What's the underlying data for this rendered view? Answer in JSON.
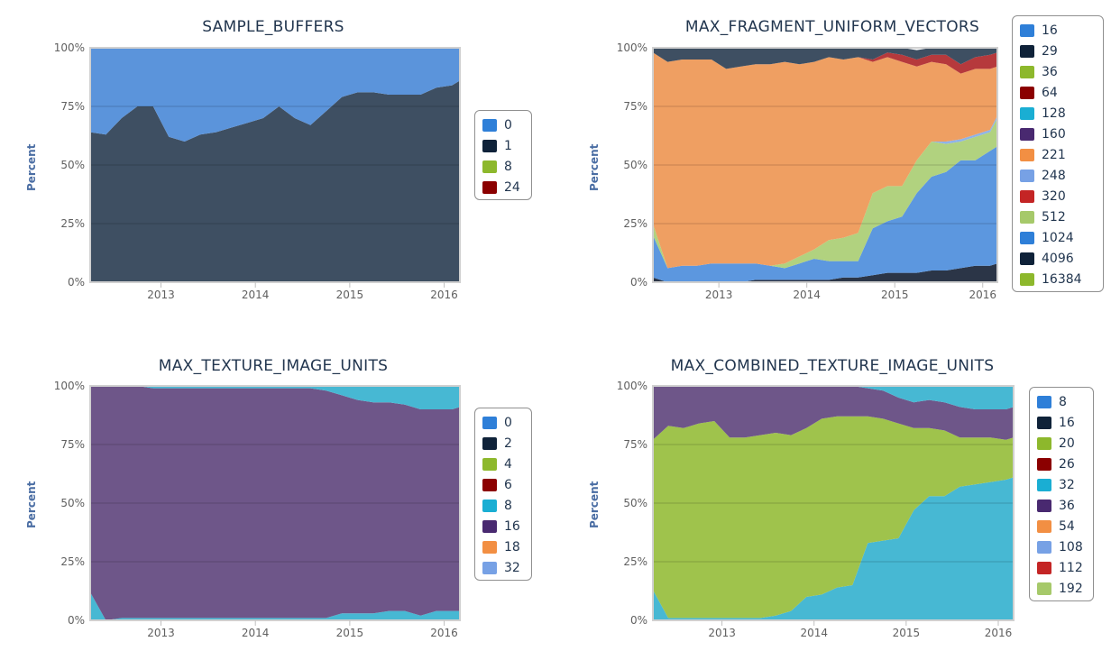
{
  "colors": {
    "0": "#2e7fd8",
    "1": "#0f2239",
    "2": "#0f2239",
    "4": "#8db82c",
    "6": "#8b0000",
    "8": "#2e7fd8",
    "16": "#2e7fd8",
    "18": "#f28f43",
    "20": "#8db82c",
    "24": "#8b0000",
    "26": "#8b0000",
    "29": "#0f2239",
    "32": "#1aaed3",
    "36": "#8db82c",
    "54": "#f28f43",
    "64": "#8b0000",
    "108": "#77a1e5",
    "112": "#c42525",
    "128": "#1aaed3",
    "160": "#492970",
    "192": "#a6c96a",
    "221": "#f28f43",
    "248": "#77a1e5",
    "320": "#c42525",
    "512": "#a6c96a",
    "1024": "#2e7fd8",
    "4096": "#0f2239",
    "16384": "#8db82c",
    "c8_tex": "#2e7fd8",
    "c16_tex": "#0f2239",
    "c32_img": "#1aaed3",
    "c16_img": "#492970",
    "c32_img_light": "#77a1e5",
    "c36_tex": "#492970"
  },
  "charts": [
    {
      "title": "SAMPLE_BUFFERS",
      "ylabel": "Percent",
      "yticks": [
        "0%",
        "25%",
        "50%",
        "75%",
        "100%"
      ],
      "xticks": [
        "2013",
        "2014",
        "2015",
        "2016"
      ],
      "legend": [
        {
          "label": "0",
          "color": "#2e7fd8"
        },
        {
          "label": "1",
          "color": "#0f2239"
        },
        {
          "label": "8",
          "color": "#8db82c"
        },
        {
          "label": "24",
          "color": "#8b0000"
        }
      ]
    },
    {
      "title": "MAX_FRAGMENT_UNIFORM_VECTORS",
      "ylabel": "Percent",
      "yticks": [
        "0%",
        "25%",
        "50%",
        "75%",
        "100%"
      ],
      "xticks": [
        "2013",
        "2014",
        "2015",
        "2016"
      ],
      "legend": [
        {
          "label": "16",
          "color": "#2e7fd8"
        },
        {
          "label": "29",
          "color": "#0f2239"
        },
        {
          "label": "36",
          "color": "#8db82c"
        },
        {
          "label": "64",
          "color": "#8b0000"
        },
        {
          "label": "128",
          "color": "#1aaed3"
        },
        {
          "label": "160",
          "color": "#492970"
        },
        {
          "label": "221",
          "color": "#f28f43"
        },
        {
          "label": "248",
          "color": "#77a1e5"
        },
        {
          "label": "320",
          "color": "#c42525"
        },
        {
          "label": "512",
          "color": "#a6c96a"
        },
        {
          "label": "1024",
          "color": "#2e7fd8"
        },
        {
          "label": "4096",
          "color": "#0f2239"
        },
        {
          "label": "16384",
          "color": "#8db82c"
        }
      ]
    },
    {
      "title": "MAX_TEXTURE_IMAGE_UNITS",
      "ylabel": "Percent",
      "yticks": [
        "0%",
        "25%",
        "50%",
        "75%",
        "100%"
      ],
      "xticks": [
        "2013",
        "2014",
        "2015",
        "2016"
      ],
      "legend": [
        {
          "label": "0",
          "color": "#2e7fd8"
        },
        {
          "label": "2",
          "color": "#0f2239"
        },
        {
          "label": "4",
          "color": "#8db82c"
        },
        {
          "label": "6",
          "color": "#8b0000"
        },
        {
          "label": "8",
          "color": "#1aaed3"
        },
        {
          "label": "16",
          "color": "#492970"
        },
        {
          "label": "18",
          "color": "#f28f43"
        },
        {
          "label": "32",
          "color": "#77a1e5"
        }
      ]
    },
    {
      "title": "MAX_COMBINED_TEXTURE_IMAGE_UNITS",
      "ylabel": "Percent",
      "yticks": [
        "0%",
        "25%",
        "50%",
        "75%",
        "100%"
      ],
      "xticks": [
        "2013",
        "2014",
        "2015",
        "2016"
      ],
      "legend": [
        {
          "label": "8",
          "color": "#2e7fd8"
        },
        {
          "label": "16",
          "color": "#0f2239"
        },
        {
          "label": "20",
          "color": "#8db82c"
        },
        {
          "label": "26",
          "color": "#8b0000"
        },
        {
          "label": "32",
          "color": "#1aaed3"
        },
        {
          "label": "36",
          "color": "#492970"
        },
        {
          "label": "54",
          "color": "#f28f43"
        },
        {
          "label": "108",
          "color": "#77a1e5"
        },
        {
          "label": "112",
          "color": "#c42525"
        },
        {
          "label": "192",
          "color": "#a6c96a"
        }
      ]
    }
  ],
  "chart_data": [
    {
      "type": "area",
      "stacking": "percent",
      "title": "SAMPLE_BUFFERS",
      "ylabel": "Percent",
      "ylim": [
        0,
        100
      ],
      "xlim": [
        "2012-04",
        "2016-03"
      ],
      "x": [
        "2012-04",
        "2012-06",
        "2012-08",
        "2012-10",
        "2012-12",
        "2013-02",
        "2013-04",
        "2013-06",
        "2013-08",
        "2013-10",
        "2013-12",
        "2014-02",
        "2014-04",
        "2014-06",
        "2014-08",
        "2014-10",
        "2014-12",
        "2015-02",
        "2015-04",
        "2015-06",
        "2015-08",
        "2015-10",
        "2015-12",
        "2016-02",
        "2016-03"
      ],
      "series": [
        {
          "name": "1",
          "values": [
            64,
            63,
            70,
            75,
            75,
            62,
            60,
            63,
            64,
            66,
            68,
            70,
            75,
            70,
            67,
            73,
            79,
            81,
            81,
            80,
            80,
            80,
            83,
            84,
            86
          ]
        },
        {
          "name": "0",
          "values": [
            36,
            37,
            30,
            25,
            25,
            38,
            40,
            37,
            36,
            34,
            32,
            30,
            25,
            30,
            33,
            27,
            21,
            19,
            19,
            20,
            20,
            20,
            17,
            16,
            14
          ]
        }
      ]
    },
    {
      "type": "area",
      "stacking": "percent",
      "title": "MAX_FRAGMENT_UNIFORM_VECTORS",
      "ylabel": "Percent",
      "ylim": [
        0,
        100
      ],
      "xlim": [
        "2012-04",
        "2016-03"
      ],
      "x": [
        "2012-04",
        "2012-06",
        "2012-08",
        "2012-10",
        "2012-12",
        "2013-02",
        "2013-04",
        "2013-06",
        "2013-08",
        "2013-10",
        "2013-12",
        "2014-02",
        "2014-04",
        "2014-06",
        "2014-08",
        "2014-10",
        "2014-12",
        "2015-02",
        "2015-04",
        "2015-06",
        "2015-08",
        "2015-10",
        "2015-12",
        "2016-02",
        "2016-03"
      ],
      "series": [
        {
          "name": "4096",
          "values": [
            2,
            0,
            0,
            0,
            0,
            0,
            0,
            1,
            1,
            1,
            1,
            1,
            1,
            2,
            2,
            3,
            4,
            4,
            4,
            5,
            5,
            6,
            7,
            7,
            8
          ]
        },
        {
          "name": "1024",
          "values": [
            18,
            6,
            7,
            7,
            8,
            8,
            8,
            7,
            6,
            5,
            7,
            9,
            8,
            7,
            7,
            20,
            22,
            24,
            34,
            40,
            42,
            46,
            45,
            49,
            50
          ]
        },
        {
          "name": "512",
          "values": [
            5,
            0,
            0,
            0,
            0,
            0,
            0,
            0,
            0,
            2,
            3,
            4,
            9,
            10,
            12,
            15,
            15,
            13,
            14,
            15,
            12,
            8,
            10,
            8,
            12
          ]
        },
        {
          "name": "248",
          "values": [
            0,
            0,
            0,
            0,
            0,
            0,
            0,
            0,
            0,
            0,
            0,
            0,
            0,
            0,
            0,
            0,
            0,
            0,
            0,
            0,
            1,
            1,
            1,
            1,
            1
          ]
        },
        {
          "name": "221",
          "values": [
            73,
            88,
            88,
            88,
            87,
            83,
            84,
            85,
            86,
            86,
            82,
            80,
            78,
            76,
            75,
            56,
            55,
            53,
            40,
            34,
            33,
            28,
            28,
            26,
            21
          ]
        },
        {
          "name": "320",
          "values": [
            0,
            0,
            0,
            0,
            0,
            0,
            0,
            0,
            0,
            0,
            0,
            0,
            0,
            0,
            0,
            1,
            2,
            3,
            3,
            3,
            4,
            4,
            5,
            6,
            6
          ]
        },
        {
          "name": "29",
          "values": [
            2,
            6,
            5,
            5,
            5,
            9,
            8,
            7,
            7,
            6,
            7,
            6,
            4,
            5,
            4,
            5,
            2,
            3,
            4,
            3,
            3,
            7,
            4,
            3,
            2
          ]
        }
      ]
    },
    {
      "type": "area",
      "stacking": "percent",
      "title": "MAX_TEXTURE_IMAGE_UNITS",
      "ylabel": "Percent",
      "ylim": [
        0,
        100
      ],
      "xlim": [
        "2012-04",
        "2016-03"
      ],
      "x": [
        "2012-04",
        "2012-06",
        "2012-08",
        "2012-10",
        "2012-12",
        "2013-02",
        "2013-04",
        "2013-06",
        "2013-08",
        "2013-10",
        "2013-12",
        "2014-02",
        "2014-04",
        "2014-06",
        "2014-08",
        "2014-10",
        "2014-12",
        "2015-02",
        "2015-04",
        "2015-06",
        "2015-08",
        "2015-10",
        "2015-12",
        "2016-02",
        "2016-03"
      ],
      "series": [
        {
          "name": "32",
          "values": [
            12,
            0,
            1,
            1,
            1,
            1,
            1,
            1,
            1,
            1,
            1,
            1,
            1,
            1,
            1,
            1,
            3,
            3,
            3,
            4,
            4,
            2,
            4,
            4,
            4
          ]
        },
        {
          "name": "16",
          "values": [
            88,
            100,
            99,
            99,
            98,
            98,
            98,
            98,
            98,
            98,
            98,
            98,
            98,
            98,
            98,
            97,
            93,
            91,
            90,
            89,
            88,
            88,
            86,
            86,
            87
          ]
        },
        {
          "name": "8",
          "values": [
            0,
            0,
            0,
            0,
            1,
            1,
            1,
            1,
            1,
            1,
            1,
            1,
            1,
            1,
            1,
            2,
            4,
            6,
            7,
            7,
            8,
            10,
            10,
            10,
            9
          ]
        }
      ]
    },
    {
      "type": "area",
      "stacking": "percent",
      "title": "MAX_COMBINED_TEXTURE_IMAGE_UNITS",
      "ylabel": "Percent",
      "ylim": [
        0,
        100
      ],
      "xlim": [
        "2012-04",
        "2016-03"
      ],
      "x": [
        "2012-04",
        "2012-06",
        "2012-08",
        "2012-10",
        "2012-12",
        "2013-02",
        "2013-04",
        "2013-06",
        "2013-08",
        "2013-10",
        "2013-12",
        "2014-02",
        "2014-04",
        "2014-06",
        "2014-08",
        "2014-10",
        "2014-12",
        "2015-02",
        "2015-04",
        "2015-06",
        "2015-08",
        "2015-10",
        "2015-12",
        "2016-02",
        "2016-03"
      ],
      "series": [
        {
          "name": "32",
          "values": [
            13,
            1,
            1,
            1,
            1,
            1,
            1,
            1,
            2,
            4,
            10,
            11,
            14,
            15,
            33,
            34,
            35,
            47,
            53,
            53,
            57,
            58,
            59,
            60,
            61
          ]
        },
        {
          "name": "20",
          "values": [
            64,
            82,
            81,
            83,
            84,
            77,
            77,
            78,
            78,
            75,
            72,
            75,
            73,
            72,
            54,
            52,
            49,
            35,
            29,
            28,
            21,
            20,
            19,
            17,
            17
          ]
        },
        {
          "name": "16",
          "values": [
            23,
            17,
            18,
            16,
            15,
            22,
            22,
            21,
            20,
            21,
            18,
            14,
            13,
            13,
            12,
            12,
            11,
            11,
            12,
            12,
            13,
            12,
            12,
            13,
            13
          ]
        },
        {
          "name": "8",
          "values": [
            0,
            0,
            0,
            0,
            0,
            0,
            0,
            0,
            0,
            0,
            0,
            0,
            0,
            0,
            1,
            2,
            5,
            7,
            6,
            7,
            9,
            10,
            10,
            10,
            9
          ]
        }
      ]
    }
  ]
}
